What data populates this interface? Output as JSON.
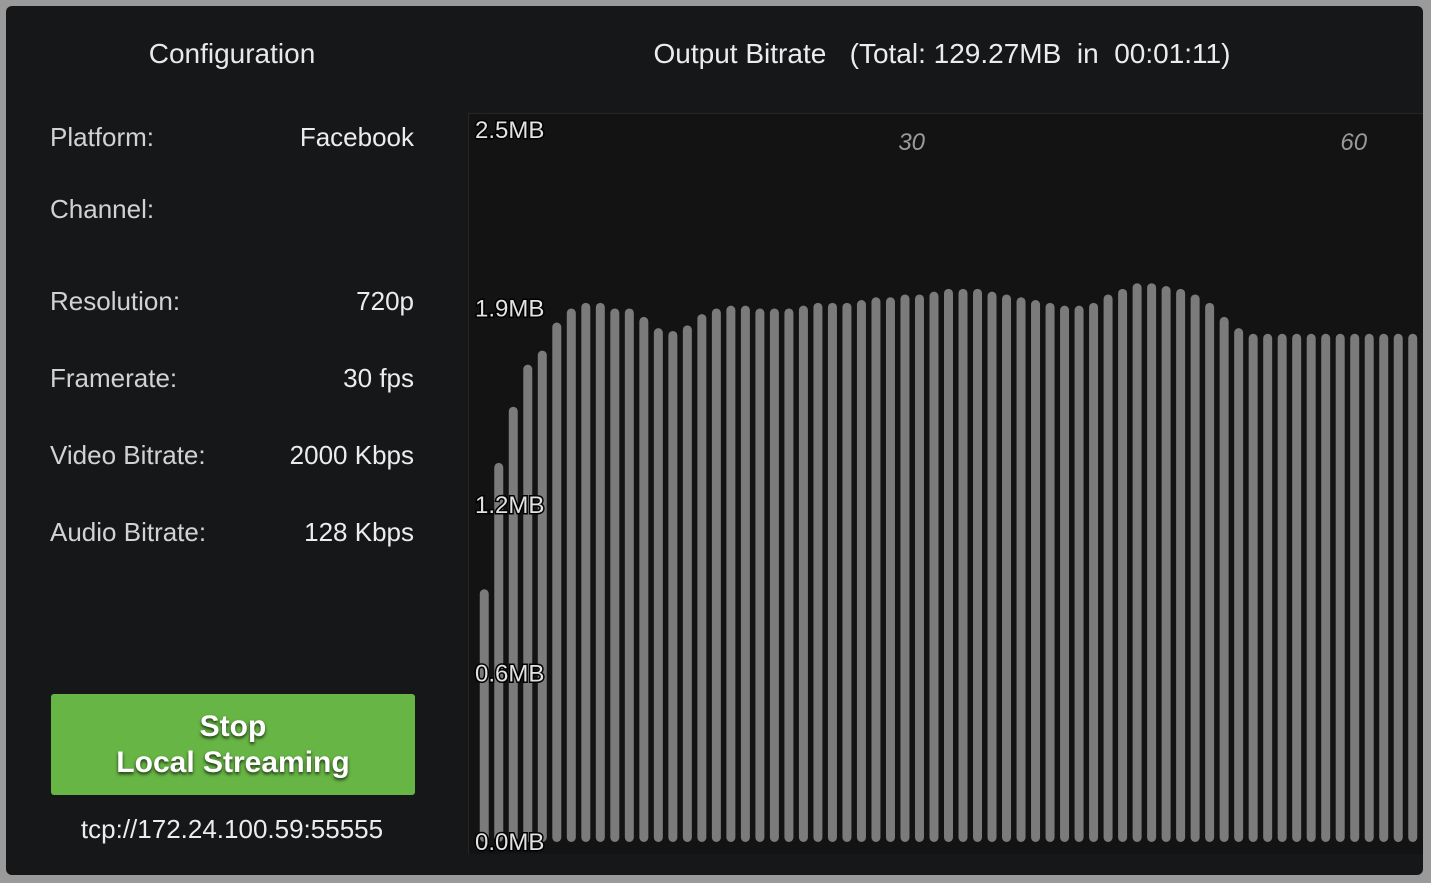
{
  "config": {
    "title": "Configuration",
    "rows": [
      {
        "label": "Platform:",
        "value": "Facebook"
      },
      {
        "label": "Channel:",
        "value": ""
      },
      {
        "label": "Resolution:",
        "value": "720p"
      },
      {
        "label": "Framerate:",
        "value": "30 fps"
      },
      {
        "label": "Video Bitrate:",
        "value": "2000 Kbps"
      },
      {
        "label": "Audio Bitrate:",
        "value": "128 Kbps"
      }
    ],
    "stop_button": {
      "line1": "Stop",
      "line2": "Local Streaming"
    },
    "address": "tcp://172.24.100.59:55555"
  },
  "chart_header": {
    "title": "Output Bitrate   (Total: 129.27MB  in  00:01:11)"
  },
  "chart_data": {
    "type": "bar",
    "title": "Output Bitrate   (Total: 129.27MB  in  00:01:11)",
    "ylim": [
      0,
      2.5
    ],
    "y_ticks": [
      {
        "value": 2.5,
        "label": "2.5MB"
      },
      {
        "value": 1.9,
        "label": "1.9MB"
      },
      {
        "value": 1.2,
        "label": "1.2MB"
      },
      {
        "value": 0.6,
        "label": "0.6MB"
      },
      {
        "value": 0.0,
        "label": "0.0MB"
      }
    ],
    "x_ticks": [
      {
        "value": 30,
        "label": "30"
      },
      {
        "value": 60,
        "label": "60"
      }
    ],
    "xlim": [
      0.5,
      64.5
    ],
    "grid": false,
    "values": [
      0.9,
      1.35,
      1.55,
      1.7,
      1.75,
      1.85,
      1.9,
      1.92,
      1.92,
      1.9,
      1.9,
      1.87,
      1.83,
      1.82,
      1.84,
      1.88,
      1.9,
      1.91,
      1.91,
      1.9,
      1.9,
      1.9,
      1.91,
      1.92,
      1.92,
      1.92,
      1.93,
      1.94,
      1.94,
      1.95,
      1.95,
      1.96,
      1.97,
      1.97,
      1.97,
      1.96,
      1.95,
      1.94,
      1.93,
      1.92,
      1.91,
      1.91,
      1.92,
      1.95,
      1.97,
      1.99,
      1.99,
      1.98,
      1.97,
      1.95,
      1.92,
      1.87,
      1.83,
      1.81,
      1.81,
      1.81,
      1.81,
      1.81,
      1.81,
      1.81,
      1.81,
      1.81,
      1.81,
      1.81,
      1.81
    ],
    "bar_color": "#7b7b7b"
  }
}
